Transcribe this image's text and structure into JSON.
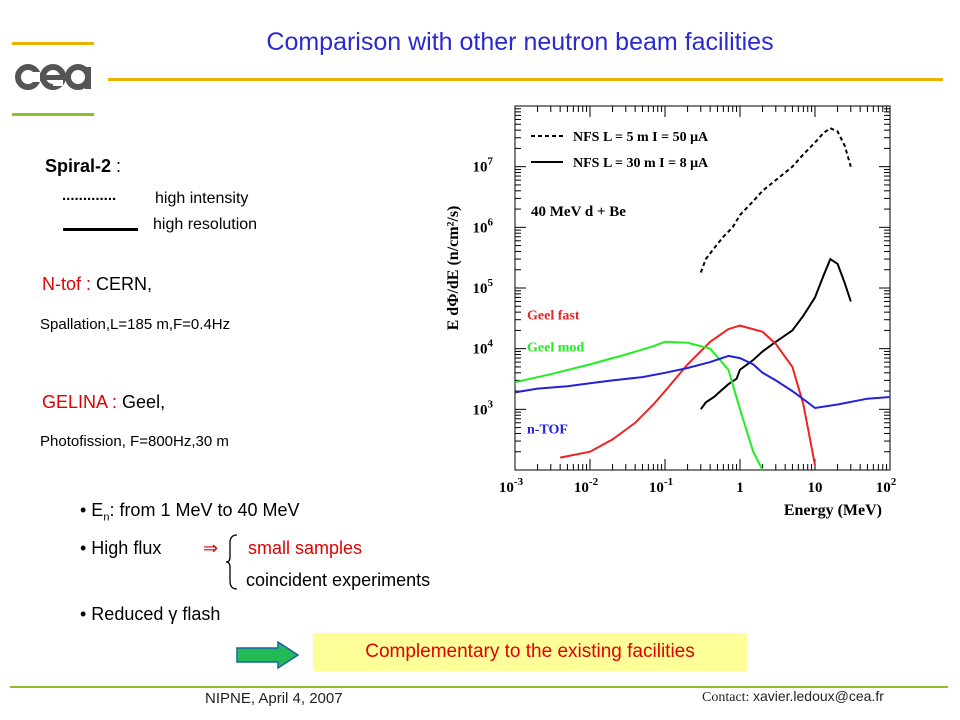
{
  "slide": {
    "title": "Comparison with other neutron beam facilities",
    "spiral": {
      "label": "Spiral-2",
      "colon": " :",
      "legend_dotted_marker": ".............",
      "legend_dotted": "high intensity",
      "legend_solid": "high resolution"
    },
    "ntof": {
      "name": "N-tof :",
      "site": " CERN,",
      "details": "Spallation,L=185 m,F=0.4Hz"
    },
    "gelina": {
      "name": "GELINA :",
      "site": " Geel,",
      "details": "Photofission, F=800Hz,30 m"
    },
    "bullets": {
      "energy_prefix": "• E",
      "energy_sub": "n",
      "energy_rest": ": from 1 MeV to 40 MeV",
      "flux": "• High flux",
      "arrow": "⇒",
      "small_samples": "small samples",
      "coincident": "coincident experiments",
      "reduced": "• Reduced γ flash"
    },
    "complementary": "Complementary to the existing facilities",
    "footer_left": "NIPNE, April 4, 2007",
    "footer_contact_label": "Contact: ",
    "footer_contact_email": "xavier.ledoux@cea.fr",
    "logo_text": "cea"
  },
  "colors": {
    "title": "#2a2ad0",
    "accent_red": "#e00000",
    "gold": "#e8b400",
    "green": "#8dbf2a",
    "box": "#ffff99",
    "arrow": "#22bb55",
    "series_fast": "#ee2222",
    "series_mod": "#22ee22",
    "series_ntof": "#2222dd",
    "series_nfs": "#000000"
  },
  "chart_data": {
    "type": "line",
    "xscale": "log",
    "yscale": "log",
    "xlim": [
      0.001,
      100
    ],
    "ylim": [
      100,
      100000000
    ],
    "xlabel": "Energy (MeV)",
    "ylabel": "E dΦ/dE (n/cm²/s)",
    "xticks": [
      {
        "v": 0.001,
        "base": "10",
        "exp": "-3"
      },
      {
        "v": 0.01,
        "base": "10",
        "exp": "-2"
      },
      {
        "v": 0.1,
        "base": "10",
        "exp": "-1"
      },
      {
        "v": 1,
        "base": "1",
        "exp": ""
      },
      {
        "v": 10,
        "base": "10",
        "exp": ""
      },
      {
        "v": 100,
        "base": "10",
        "exp": "2"
      }
    ],
    "yticks": [
      {
        "v": 1000,
        "base": "10",
        "exp": "3"
      },
      {
        "v": 10000,
        "base": "10",
        "exp": "4"
      },
      {
        "v": 100000,
        "base": "10",
        "exp": "5"
      },
      {
        "v": 1000000,
        "base": "10",
        "exp": "6"
      },
      {
        "v": 10000000,
        "base": "10",
        "exp": "7"
      }
    ],
    "legend": [
      {
        "label": "NFS L = 5 m  I = 50 μA",
        "style": "dotted"
      },
      {
        "label": "NFS L = 30 m  I = 8 μA",
        "style": "solid"
      }
    ],
    "annotation": "40 MeV d + Be",
    "series": [
      {
        "name": "NFS L = 5 m  I = 50 μA",
        "color": "#000000",
        "dash": true,
        "label": "",
        "x": [
          0.3,
          0.35,
          0.45,
          0.6,
          0.8,
          1.0,
          1.5,
          2,
          3,
          5,
          7,
          10,
          13,
          16,
          20,
          25,
          30
        ],
        "y": [
          180000,
          300000,
          450000,
          700000,
          1000000,
          1600000,
          2700000,
          4000000,
          6000000,
          10000000,
          16000000,
          25000000,
          36000000,
          43000000,
          38000000,
          22000000,
          10000000
        ]
      },
      {
        "name": "NFS L = 30 m  I = 8 μA",
        "color": "#000000",
        "dash": false,
        "label": "",
        "x": [
          0.3,
          0.35,
          0.45,
          0.55,
          0.7,
          0.9,
          1.0,
          1.5,
          2,
          3,
          5,
          7,
          10,
          13,
          16,
          20,
          25,
          30
        ],
        "y": [
          1000,
          1300,
          1600,
          2000,
          2600,
          3200,
          4500,
          6500,
          9000,
          13000,
          20000,
          35000,
          70000,
          160000,
          300000,
          250000,
          120000,
          60000
        ]
      },
      {
        "name": "Geel fast",
        "color": "#ee2222",
        "dash": false,
        "label": "Geel fast",
        "x": [
          0.004,
          0.01,
          0.02,
          0.04,
          0.07,
          0.1,
          0.2,
          0.4,
          0.7,
          1.0,
          2,
          3,
          5,
          7,
          10
        ],
        "y": [
          160,
          200,
          320,
          600,
          1200,
          2000,
          5500,
          13000,
          21000,
          24000,
          19000,
          12000,
          5000,
          1200,
          120
        ]
      },
      {
        "name": "Geel mod",
        "color": "#22ee22",
        "dash": false,
        "label": "Geel mod",
        "x": [
          0.001,
          0.003,
          0.01,
          0.03,
          0.07,
          0.1,
          0.2,
          0.4,
          0.7,
          1.0,
          1.5,
          2
        ],
        "y": [
          2800,
          3800,
          5500,
          8000,
          11000,
          13000,
          12500,
          10000,
          4500,
          1000,
          200,
          100
        ]
      },
      {
        "name": "n-TOF",
        "color": "#2222dd",
        "dash": false,
        "label": "n-TOF",
        "x": [
          0.001,
          0.002,
          0.005,
          0.01,
          0.02,
          0.05,
          0.1,
          0.2,
          0.4,
          0.7,
          1,
          1.5,
          2,
          3,
          5,
          8,
          10,
          20,
          50,
          100
        ],
        "y": [
          1900,
          2200,
          2400,
          2700,
          3000,
          3400,
          4000,
          4800,
          6000,
          7600,
          7000,
          5500,
          4000,
          3000,
          2000,
          1300,
          1050,
          1200,
          1500,
          1600
        ]
      }
    ]
  }
}
